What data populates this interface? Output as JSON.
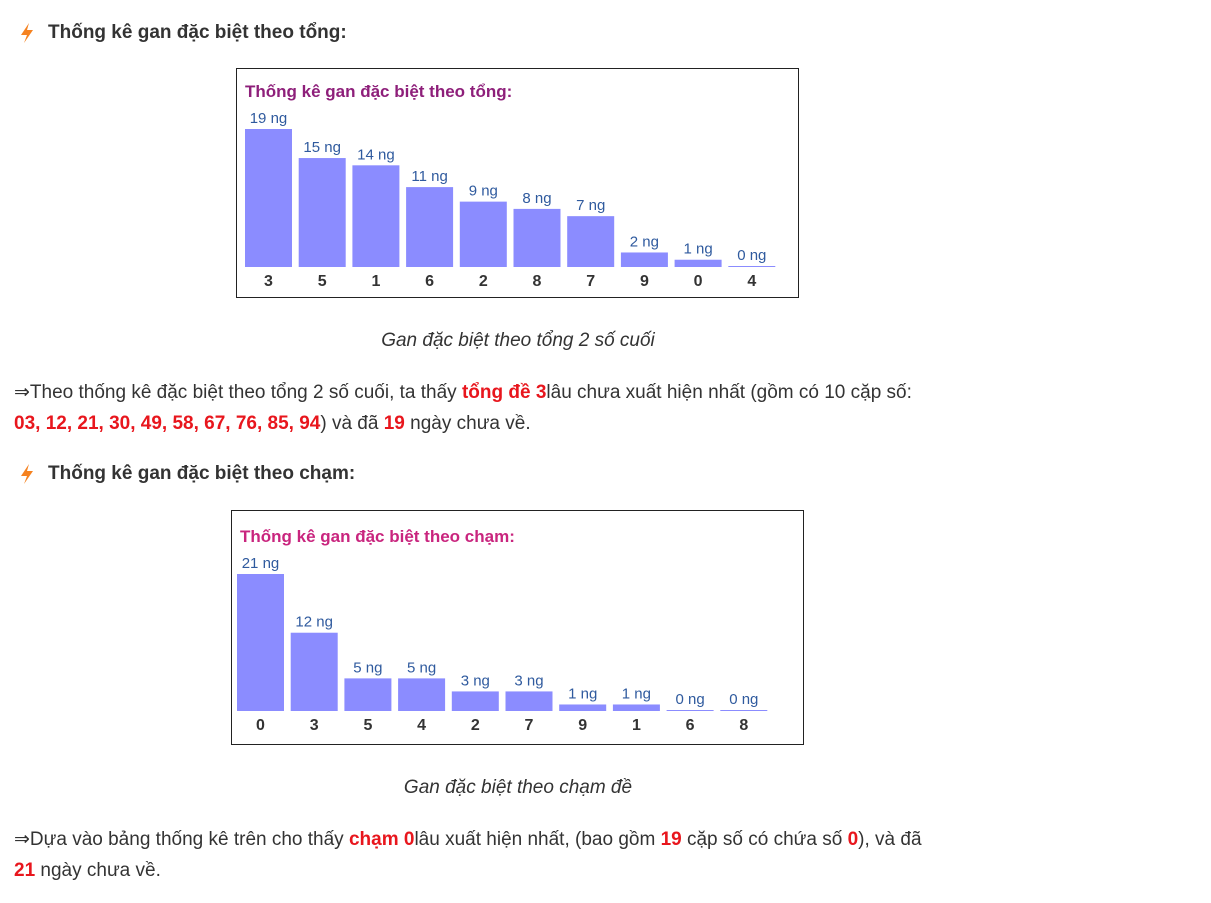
{
  "accent_color": "#e8161d",
  "icon_color": "#f58220",
  "bar_color": "#8b8cff",
  "section1": {
    "heading": "Thống kê gan đặc biệt theo tổng:",
    "icon": "lightning-icon",
    "caption": "Gan đặc biệt theo tổng 2 số cuối",
    "para": {
      "lead": "⇒Theo thống kê đặc biệt theo tổng 2 số cuối, ta thấy ",
      "hl1": "tổng đề 3",
      "mid1": "lâu chưa xuất hiện nhất (gồm có 10 cặp số: ",
      "hl2": "03, 12, 21, 30, 49, 58, 67, 76, 85, 94",
      "mid2": ") và đã ",
      "hl3": "19",
      "tail": " ngày chưa về."
    }
  },
  "section2": {
    "heading": "Thống kê gan đặc biệt theo chạm:",
    "icon": "lightning-icon",
    "caption": "Gan đặc biệt theo chạm đề",
    "para": {
      "lead": "⇒Dựa vào bảng thống kê trên cho thấy ",
      "hl1": "chạm 0",
      "mid1": "lâu xuất hiện nhất, (bao gồm ",
      "hl2": "19",
      "mid2": " cặp số có chứa số ",
      "hl3": "0",
      "mid3": "), và đã ",
      "hl4": "21",
      "tail": " ngày chưa về."
    }
  },
  "chart_data": [
    {
      "type": "bar",
      "title": "Thống kê gan đặc biệt theo tổng:",
      "title_color": "#8e1f7a",
      "categories": [
        "3",
        "5",
        "1",
        "6",
        "2",
        "8",
        "7",
        "9",
        "0",
        "4"
      ],
      "values": [
        19,
        15,
        14,
        11,
        9,
        8,
        7,
        2,
        1,
        0
      ],
      "value_labels": [
        "19 ng",
        "15 ng",
        "14 ng",
        "11 ng",
        "9 ng",
        "8 ng",
        "7 ng",
        "2 ng",
        "1 ng",
        "0 ng"
      ],
      "ylim": [
        0,
        19
      ]
    },
    {
      "type": "bar",
      "title": "Thống kê gan đặc biệt theo chạm:",
      "title_color": "#c9257e",
      "categories": [
        "0",
        "3",
        "5",
        "4",
        "2",
        "7",
        "9",
        "1",
        "6",
        "8"
      ],
      "values": [
        21,
        12,
        5,
        5,
        3,
        3,
        1,
        1,
        0,
        0
      ],
      "value_labels": [
        "21 ng",
        "12 ng",
        "5 ng",
        "5 ng",
        "3 ng",
        "3 ng",
        "1 ng",
        "1 ng",
        "0 ng",
        "0 ng"
      ],
      "ylim": [
        0,
        21
      ]
    }
  ]
}
